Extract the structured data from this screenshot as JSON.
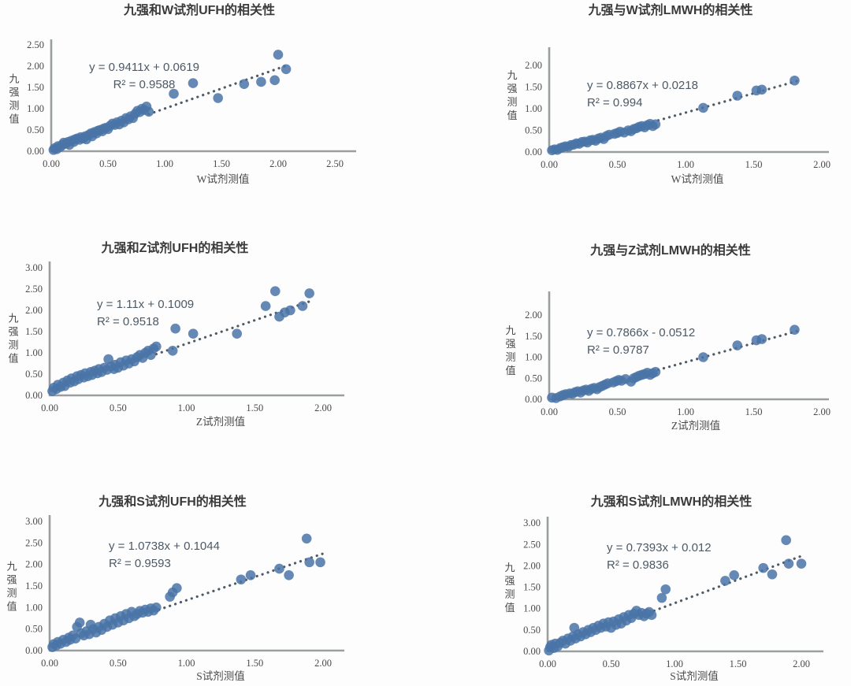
{
  "page": {
    "background": "#fcfdfc"
  },
  "colors": {
    "dot": "#4a74a7",
    "trend": "#4e5a66",
    "axis": "#9a9e9f"
  },
  "chart_data": [
    {
      "type": "scatter",
      "title": "九强和W试剂UFH的相关性",
      "xlabel": "W试剂测值",
      "ylabel": "九强测值",
      "equation": "y = 0.9411x + 0.0619",
      "r2": "R² = 0.9588",
      "xlim": [
        0,
        2.5
      ],
      "ylim": [
        0,
        2.5
      ],
      "tick_step": 0.5,
      "grid": false,
      "legend": "none",
      "trend": {
        "style": "dotted",
        "x1": 0.86,
        "y1": 0.87,
        "x2": 2.08,
        "y2": 2.02
      },
      "points": [
        [
          0.02,
          0.03
        ],
        [
          0.03,
          0.07
        ],
        [
          0.05,
          0.05
        ],
        [
          0.06,
          0.12
        ],
        [
          0.08,
          0.1
        ],
        [
          0.1,
          0.15
        ],
        [
          0.11,
          0.2
        ],
        [
          0.13,
          0.18
        ],
        [
          0.15,
          0.22
        ],
        [
          0.16,
          0.15
        ],
        [
          0.18,
          0.25
        ],
        [
          0.2,
          0.22
        ],
        [
          0.21,
          0.28
        ],
        [
          0.23,
          0.3
        ],
        [
          0.25,
          0.27
        ],
        [
          0.26,
          0.33
        ],
        [
          0.28,
          0.3
        ],
        [
          0.3,
          0.35
        ],
        [
          0.31,
          0.28
        ],
        [
          0.33,
          0.38
        ],
        [
          0.35,
          0.42
        ],
        [
          0.36,
          0.35
        ],
        [
          0.38,
          0.45
        ],
        [
          0.4,
          0.42
        ],
        [
          0.41,
          0.48
        ],
        [
          0.43,
          0.5
        ],
        [
          0.45,
          0.47
        ],
        [
          0.46,
          0.53
        ],
        [
          0.48,
          0.55
        ],
        [
          0.5,
          0.52
        ],
        [
          0.52,
          0.6
        ],
        [
          0.54,
          0.65
        ],
        [
          0.56,
          0.62
        ],
        [
          0.58,
          0.68
        ],
        [
          0.6,
          0.63
        ],
        [
          0.62,
          0.72
        ],
        [
          0.64,
          0.68
        ],
        [
          0.66,
          0.78
        ],
        [
          0.68,
          0.75
        ],
        [
          0.7,
          0.82
        ],
        [
          0.72,
          0.78
        ],
        [
          0.74,
          0.88
        ],
        [
          0.76,
          0.95
        ],
        [
          0.78,
          0.92
        ],
        [
          0.8,
          1.0
        ],
        [
          0.82,
          0.97
        ],
        [
          0.84,
          1.05
        ],
        [
          0.86,
          0.93
        ],
        [
          1.08,
          1.35
        ],
        [
          1.25,
          1.6
        ],
        [
          1.47,
          1.25
        ],
        [
          1.7,
          1.58
        ],
        [
          1.85,
          1.63
        ],
        [
          1.97,
          1.67
        ],
        [
          2.0,
          2.27
        ],
        [
          2.07,
          1.93
        ]
      ]
    },
    {
      "type": "scatter",
      "title": "九强与W试剂LMWH的相关性",
      "xlabel": "W试剂测值",
      "ylabel": "九强测值",
      "equation": "y = 0.8867x + 0.0218",
      "r2": "R² = 0.994",
      "xlim": [
        0,
        2.0
      ],
      "ylim": [
        0,
        2.0
      ],
      "tick_step": 0.5,
      "grid": false,
      "legend": "none",
      "trend": {
        "style": "dotted",
        "x1": 0.8,
        "y1": 0.73,
        "x2": 1.82,
        "y2": 1.64
      },
      "points": [
        [
          0.02,
          0.04
        ],
        [
          0.04,
          0.06
        ],
        [
          0.06,
          0.05
        ],
        [
          0.08,
          0.09
        ],
        [
          0.1,
          0.11
        ],
        [
          0.12,
          0.13
        ],
        [
          0.14,
          0.12
        ],
        [
          0.16,
          0.16
        ],
        [
          0.18,
          0.17
        ],
        [
          0.2,
          0.2
        ],
        [
          0.22,
          0.19
        ],
        [
          0.24,
          0.23
        ],
        [
          0.26,
          0.24
        ],
        [
          0.28,
          0.22
        ],
        [
          0.3,
          0.27
        ],
        [
          0.32,
          0.28
        ],
        [
          0.34,
          0.26
        ],
        [
          0.36,
          0.31
        ],
        [
          0.38,
          0.33
        ],
        [
          0.4,
          0.3
        ],
        [
          0.42,
          0.37
        ],
        [
          0.44,
          0.4
        ],
        [
          0.48,
          0.42
        ],
        [
          0.5,
          0.44
        ],
        [
          0.52,
          0.47
        ],
        [
          0.55,
          0.45
        ],
        [
          0.58,
          0.5
        ],
        [
          0.6,
          0.48
        ],
        [
          0.62,
          0.53
        ],
        [
          0.64,
          0.55
        ],
        [
          0.66,
          0.58
        ],
        [
          0.68,
          0.6
        ],
        [
          0.7,
          0.57
        ],
        [
          0.72,
          0.62
        ],
        [
          0.74,
          0.65
        ],
        [
          0.76,
          0.6
        ],
        [
          0.78,
          0.64
        ],
        [
          1.13,
          1.02
        ],
        [
          1.38,
          1.3
        ],
        [
          1.52,
          1.42
        ],
        [
          1.56,
          1.44
        ],
        [
          1.8,
          1.65
        ]
      ]
    },
    {
      "type": "scatter",
      "title": "九强和Z试剂UFH的相关性",
      "xlabel": "Z试剂测值",
      "ylabel": "九强测值",
      "equation": "y = 1.11x + 0.1009",
      "r2": "R² = 0.9518",
      "xlim": [
        0,
        2.0
      ],
      "ylim": [
        0,
        3.0
      ],
      "tick_step": 0.5,
      "grid": false,
      "legend": "none",
      "trend": {
        "style": "dotted",
        "x1": 0.78,
        "y1": 0.97,
        "x2": 1.93,
        "y2": 2.24
      },
      "points": [
        [
          0.02,
          0.1
        ],
        [
          0.03,
          0.18
        ],
        [
          0.05,
          0.15
        ],
        [
          0.06,
          0.25
        ],
        [
          0.08,
          0.2
        ],
        [
          0.1,
          0.3
        ],
        [
          0.11,
          0.22
        ],
        [
          0.13,
          0.35
        ],
        [
          0.15,
          0.3
        ],
        [
          0.16,
          0.4
        ],
        [
          0.18,
          0.33
        ],
        [
          0.2,
          0.45
        ],
        [
          0.21,
          0.38
        ],
        [
          0.23,
          0.48
        ],
        [
          0.25,
          0.42
        ],
        [
          0.26,
          0.52
        ],
        [
          0.28,
          0.45
        ],
        [
          0.3,
          0.55
        ],
        [
          0.31,
          0.48
        ],
        [
          0.33,
          0.58
        ],
        [
          0.35,
          0.52
        ],
        [
          0.36,
          0.62
        ],
        [
          0.38,
          0.55
        ],
        [
          0.4,
          0.65
        ],
        [
          0.42,
          0.6
        ],
        [
          0.43,
          0.85
        ],
        [
          0.45,
          0.68
        ],
        [
          0.47,
          0.62
        ],
        [
          0.48,
          0.72
        ],
        [
          0.5,
          0.65
        ],
        [
          0.52,
          0.78
        ],
        [
          0.54,
          0.7
        ],
        [
          0.56,
          0.82
        ],
        [
          0.58,
          0.75
        ],
        [
          0.6,
          0.85
        ],
        [
          0.62,
          0.8
        ],
        [
          0.64,
          0.9
        ],
        [
          0.66,
          0.95
        ],
        [
          0.68,
          0.88
        ],
        [
          0.7,
          1.0
        ],
        [
          0.72,
          1.05
        ],
        [
          0.74,
          0.95
        ],
        [
          0.76,
          1.1
        ],
        [
          0.78,
          1.15
        ],
        [
          0.9,
          1.05
        ],
        [
          0.92,
          1.57
        ],
        [
          1.05,
          1.45
        ],
        [
          1.37,
          1.45
        ],
        [
          1.58,
          2.1
        ],
        [
          1.65,
          2.45
        ],
        [
          1.68,
          1.85
        ],
        [
          1.72,
          1.95
        ],
        [
          1.76,
          2.0
        ],
        [
          1.85,
          2.1
        ],
        [
          1.9,
          2.4
        ]
      ]
    },
    {
      "type": "scatter",
      "title": "九强与Z试剂LMWH的相关性",
      "xlabel": "Z试剂测值",
      "ylabel": "九强测值",
      "equation": "y = 0.7866x - 0.0512",
      "r2": "R² = 0.9787",
      "xlim": [
        0,
        2.0
      ],
      "ylim": [
        0,
        2.0
      ],
      "tick_step": 0.5,
      "grid": false,
      "legend": "none",
      "trend": {
        "style": "dotted",
        "x1": 0.8,
        "y1": 0.7,
        "x2": 1.82,
        "y2": 1.62
      },
      "points": [
        [
          0.02,
          0.04
        ],
        [
          0.05,
          0.03
        ],
        [
          0.08,
          0.07
        ],
        [
          0.1,
          0.1
        ],
        [
          0.12,
          0.12
        ],
        [
          0.15,
          0.14
        ],
        [
          0.17,
          0.13
        ],
        [
          0.19,
          0.17
        ],
        [
          0.21,
          0.19
        ],
        [
          0.23,
          0.16
        ],
        [
          0.25,
          0.21
        ],
        [
          0.27,
          0.23
        ],
        [
          0.29,
          0.2
        ],
        [
          0.31,
          0.25
        ],
        [
          0.33,
          0.27
        ],
        [
          0.35,
          0.24
        ],
        [
          0.37,
          0.29
        ],
        [
          0.39,
          0.32
        ],
        [
          0.41,
          0.35
        ],
        [
          0.43,
          0.38
        ],
        [
          0.47,
          0.4
        ],
        [
          0.49,
          0.43
        ],
        [
          0.51,
          0.46
        ],
        [
          0.53,
          0.44
        ],
        [
          0.56,
          0.48
        ],
        [
          0.6,
          0.42
        ],
        [
          0.62,
          0.5
        ],
        [
          0.64,
          0.53
        ],
        [
          0.66,
          0.56
        ],
        [
          0.68,
          0.58
        ],
        [
          0.7,
          0.6
        ],
        [
          0.72,
          0.63
        ],
        [
          0.74,
          0.58
        ],
        [
          0.76,
          0.62
        ],
        [
          0.78,
          0.65
        ],
        [
          1.13,
          1.0
        ],
        [
          1.38,
          1.28
        ],
        [
          1.52,
          1.4
        ],
        [
          1.56,
          1.43
        ],
        [
          1.8,
          1.65
        ]
      ]
    },
    {
      "type": "scatter",
      "title": "九强和S试剂UFH的相关性",
      "xlabel": "S试剂测值",
      "ylabel": "九强测值",
      "equation": "y = 1.0738x + 0.1044",
      "r2": "R² = 0.9593",
      "xlim": [
        0,
        2.0
      ],
      "ylim": [
        0,
        3.0
      ],
      "tick_step": 0.5,
      "grid": false,
      "legend": "none",
      "trend": {
        "style": "dotted",
        "x1": 0.8,
        "y1": 0.95,
        "x2": 2.0,
        "y2": 2.25
      },
      "points": [
        [
          0.02,
          0.08
        ],
        [
          0.03,
          0.15
        ],
        [
          0.05,
          0.12
        ],
        [
          0.06,
          0.2
        ],
        [
          0.08,
          0.16
        ],
        [
          0.1,
          0.25
        ],
        [
          0.12,
          0.2
        ],
        [
          0.14,
          0.3
        ],
        [
          0.15,
          0.25
        ],
        [
          0.17,
          0.35
        ],
        [
          0.19,
          0.28
        ],
        [
          0.2,
          0.55
        ],
        [
          0.22,
          0.65
        ],
        [
          0.23,
          0.4
        ],
        [
          0.25,
          0.35
        ],
        [
          0.27,
          0.45
        ],
        [
          0.29,
          0.38
        ],
        [
          0.3,
          0.6
        ],
        [
          0.32,
          0.5
        ],
        [
          0.34,
          0.42
        ],
        [
          0.36,
          0.55
        ],
        [
          0.38,
          0.48
        ],
        [
          0.4,
          0.62
        ],
        [
          0.42,
          0.55
        ],
        [
          0.44,
          0.7
        ],
        [
          0.46,
          0.6
        ],
        [
          0.48,
          0.75
        ],
        [
          0.5,
          0.65
        ],
        [
          0.52,
          0.8
        ],
        [
          0.54,
          0.7
        ],
        [
          0.56,
          0.85
        ],
        [
          0.58,
          0.75
        ],
        [
          0.6,
          0.9
        ],
        [
          0.62,
          0.8
        ],
        [
          0.64,
          0.85
        ],
        [
          0.66,
          0.92
        ],
        [
          0.68,
          0.88
        ],
        [
          0.7,
          0.95
        ],
        [
          0.72,
          0.9
        ],
        [
          0.74,
          0.98
        ],
        [
          0.76,
          0.93
        ],
        [
          0.78,
          1.0
        ],
        [
          0.88,
          1.25
        ],
        [
          0.9,
          1.35
        ],
        [
          0.93,
          1.45
        ],
        [
          1.4,
          1.65
        ],
        [
          1.47,
          1.75
        ],
        [
          1.68,
          1.9
        ],
        [
          1.75,
          1.75
        ],
        [
          1.88,
          2.6
        ],
        [
          1.9,
          2.05
        ],
        [
          1.98,
          2.05
        ]
      ]
    },
    {
      "type": "scatter",
      "title": "九强和S试剂LMWH的相关性",
      "xlabel": "S试剂测值",
      "ylabel": "九强测值",
      "equation": "y = 0.7393x + 0.012",
      "r2": "R² = 0.9836",
      "xlim": [
        0,
        2.0
      ],
      "ylim": [
        0,
        3.0
      ],
      "tick_step": 0.5,
      "grid": false,
      "legend": "none",
      "trend": {
        "style": "dotted",
        "x1": 0.84,
        "y1": 0.95,
        "x2": 2.02,
        "y2": 2.25
      },
      "points": [
        [
          0.01,
          0.02
        ],
        [
          0.02,
          0.1
        ],
        [
          0.03,
          0.15
        ],
        [
          0.05,
          0.08
        ],
        [
          0.06,
          0.18
        ],
        [
          0.08,
          0.12
        ],
        [
          0.1,
          0.2
        ],
        [
          0.12,
          0.25
        ],
        [
          0.14,
          0.18
        ],
        [
          0.16,
          0.3
        ],
        [
          0.18,
          0.25
        ],
        [
          0.2,
          0.35
        ],
        [
          0.21,
          0.55
        ],
        [
          0.22,
          0.3
        ],
        [
          0.24,
          0.4
        ],
        [
          0.26,
          0.35
        ],
        [
          0.28,
          0.45
        ],
        [
          0.3,
          0.4
        ],
        [
          0.32,
          0.5
        ],
        [
          0.34,
          0.45
        ],
        [
          0.36,
          0.55
        ],
        [
          0.38,
          0.5
        ],
        [
          0.4,
          0.6
        ],
        [
          0.42,
          0.55
        ],
        [
          0.44,
          0.65
        ],
        [
          0.46,
          0.58
        ],
        [
          0.48,
          0.68
        ],
        [
          0.5,
          0.55
        ],
        [
          0.52,
          0.7
        ],
        [
          0.54,
          0.62
        ],
        [
          0.56,
          0.75
        ],
        [
          0.58,
          0.65
        ],
        [
          0.6,
          0.8
        ],
        [
          0.62,
          0.72
        ],
        [
          0.64,
          0.85
        ],
        [
          0.66,
          0.78
        ],
        [
          0.68,
          0.88
        ],
        [
          0.7,
          0.95
        ],
        [
          0.72,
          0.85
        ],
        [
          0.74,
          0.9
        ],
        [
          0.76,
          0.82
        ],
        [
          0.78,
          0.88
        ],
        [
          0.8,
          0.92
        ],
        [
          0.82,
          0.85
        ],
        [
          0.9,
          1.25
        ],
        [
          0.93,
          1.45
        ],
        [
          1.4,
          1.65
        ],
        [
          1.47,
          1.78
        ],
        [
          1.7,
          1.95
        ],
        [
          1.77,
          1.8
        ],
        [
          1.88,
          2.6
        ],
        [
          1.9,
          2.05
        ],
        [
          2.0,
          2.05
        ]
      ]
    }
  ]
}
